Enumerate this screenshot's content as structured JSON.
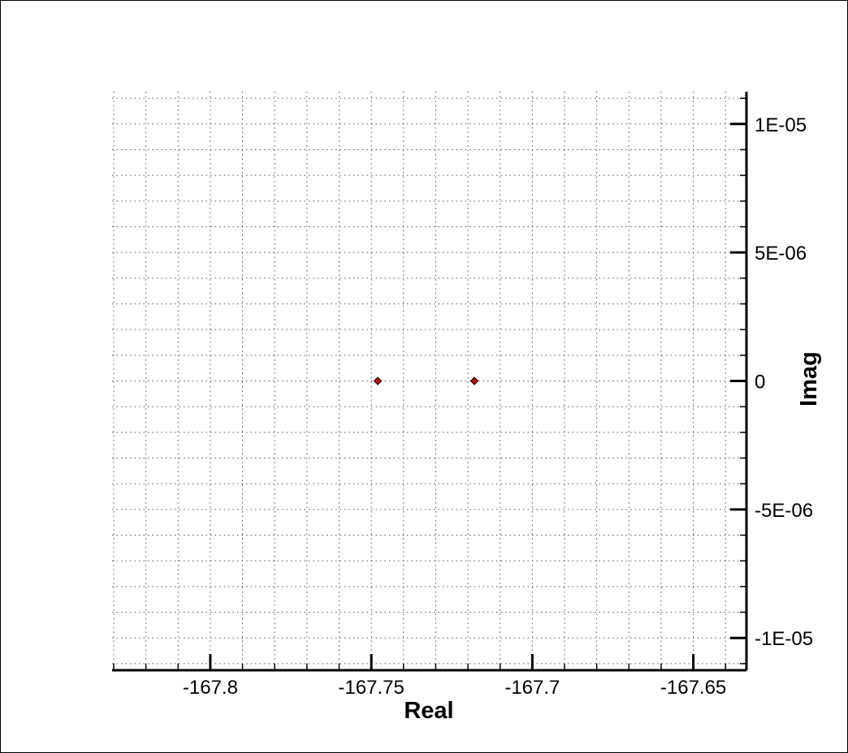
{
  "chart_data": {
    "type": "scatter",
    "title": "",
    "xlabel": "Real",
    "ylabel": "Imag",
    "xlim": [
      -167.8305,
      -167.6335
    ],
    "ylim": [
      -1.1257e-05,
      1.1257e-05
    ],
    "x_ticks": [
      {
        "value": -167.8,
        "label": "-167.8"
      },
      {
        "value": -167.75,
        "label": "-167.75"
      },
      {
        "value": -167.7,
        "label": "-167.7"
      },
      {
        "value": -167.65,
        "label": "-167.65"
      }
    ],
    "y_ticks": [
      {
        "value": 1e-05,
        "label": "1E-05"
      },
      {
        "value": 5e-06,
        "label": "5E-06"
      },
      {
        "value": 0,
        "label": "0"
      },
      {
        "value": -5e-06,
        "label": "-5E-06"
      },
      {
        "value": -1e-05,
        "label": "-1E-05"
      }
    ],
    "x_minor_step": 0.01,
    "y_minor_step": 1e-06,
    "grid": true,
    "grid_style": "dotted",
    "y_axis_side": "right",
    "series": [
      {
        "marker": "diamond",
        "color": "#cc0000",
        "points": [
          {
            "x": -167.748,
            "y": 0
          },
          {
            "x": -167.718,
            "y": 0
          }
        ]
      }
    ]
  }
}
